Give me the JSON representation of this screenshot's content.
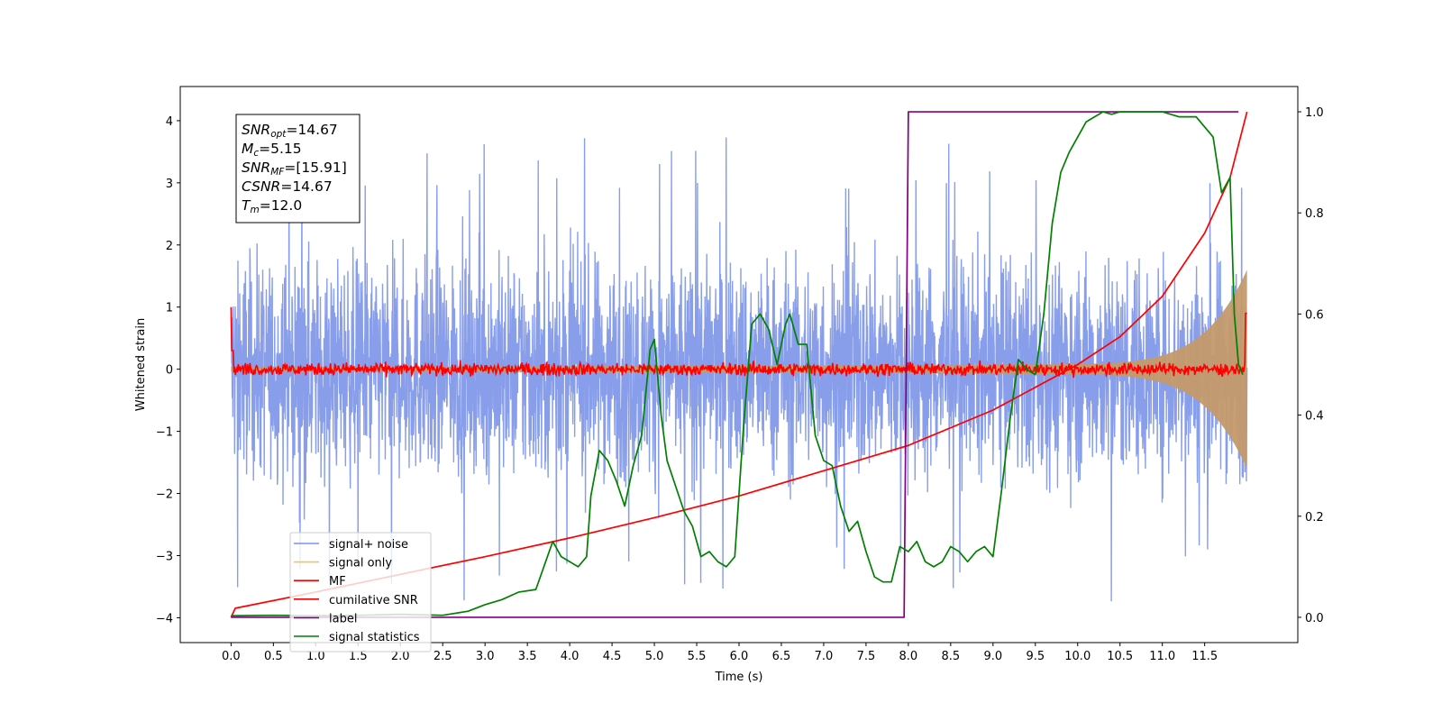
{
  "chart_data": {
    "type": "line",
    "xlabel": "Time (s)",
    "ylabel": "Whitened strain",
    "xlim": [
      -0.6,
      12.6
    ],
    "ylim": [
      -4.4,
      4.55
    ],
    "y2lim": [
      -0.05,
      1.05
    ],
    "x_ticks": [
      "0.0",
      "0.5",
      "1.0",
      "1.5",
      "2.0",
      "2.5",
      "3.0",
      "3.5",
      "4.0",
      "4.5",
      "5.0",
      "5.5",
      "6.0",
      "6.5",
      "7.0",
      "7.5",
      "8.0",
      "8.5",
      "9.0",
      "9.5",
      "10.0",
      "10.5",
      "11.0",
      "11.5"
    ],
    "y_ticks": [
      "4",
      "3",
      "2",
      "1",
      "0",
      "−1",
      "−2",
      "−3",
      "−4"
    ],
    "y2_ticks": [
      "1.0",
      "0.8",
      "0.6",
      "0.4",
      "0.2",
      "0.0"
    ],
    "annotation": {
      "snr_opt": {
        "base": "SNR",
        "sub": "opt",
        "value": "=14.67"
      },
      "mc": {
        "base": "M",
        "sub": "c",
        "value": "=5.15"
      },
      "snr_mf": {
        "base": "SNR",
        "sub": "MF",
        "value": "=[15.91]"
      },
      "csnr": {
        "base": "CSNR",
        "value": "=14.67"
      },
      "tm": {
        "base": "T",
        "sub": "m",
        "value": "=12.0"
      }
    },
    "legend_position": "lower-left",
    "series": [
      {
        "name": "signal+ noise",
        "axis": "left",
        "color": "#7b93e8",
        "desc": "noise band ~ ±2.3 with spikes to ±3.8"
      },
      {
        "name": "signal only",
        "axis": "left",
        "color": "#f5c060",
        "desc": "chirp envelope growing to ±1.5 at 12 s"
      },
      {
        "name": "MF",
        "axis": "left",
        "color": "#ff0000",
        "desc": "matched filter near 0, spike at 0 s"
      },
      {
        "name": "cumilative SNR",
        "axis": "right",
        "color": "#ff0000",
        "x": [
          0.0,
          0.05,
          1,
          2,
          3,
          4,
          5,
          6,
          7,
          8,
          9,
          10,
          10.5,
          11,
          11.5,
          11.8,
          12.0
        ],
        "y": [
          0.0,
          0.018,
          0.05,
          0.085,
          0.12,
          0.157,
          0.197,
          0.24,
          0.29,
          0.34,
          0.41,
          0.5,
          0.555,
          0.635,
          0.76,
          0.87,
          1.0
        ]
      },
      {
        "name": "label",
        "axis": "right",
        "color": "#800080",
        "x": [
          0.0,
          7.95,
          8.0,
          11.9
        ],
        "y": [
          0.0,
          0.0,
          1.0,
          1.0
        ]
      },
      {
        "name": "signal statistics",
        "axis": "right",
        "color": "#008000",
        "x": [
          0.0,
          0.5,
          1.0,
          1.5,
          2.0,
          2.5,
          2.8,
          3.0,
          3.2,
          3.4,
          3.6,
          3.8,
          3.9,
          4.0,
          4.1,
          4.2,
          4.25,
          4.35,
          4.45,
          4.55,
          4.65,
          4.75,
          4.85,
          4.95,
          5.0,
          5.08,
          5.15,
          5.25,
          5.35,
          5.45,
          5.55,
          5.65,
          5.75,
          5.85,
          5.95,
          6.05,
          6.15,
          6.25,
          6.35,
          6.45,
          6.55,
          6.6,
          6.7,
          6.8,
          6.9,
          7.0,
          7.1,
          7.2,
          7.3,
          7.4,
          7.5,
          7.6,
          7.7,
          7.8,
          7.9,
          8.0,
          8.1,
          8.2,
          8.3,
          8.4,
          8.5,
          8.6,
          8.7,
          8.8,
          8.9,
          9.0,
          9.1,
          9.2,
          9.3,
          9.4,
          9.5,
          9.6,
          9.7,
          9.8,
          9.9,
          10.0,
          10.1,
          10.2,
          10.3,
          10.4,
          10.5,
          10.7,
          10.9,
          11.0,
          11.2,
          11.4,
          11.6,
          11.7,
          11.8,
          11.85,
          11.9,
          11.95
        ],
        "y": [
          0.003,
          0.004,
          0.003,
          0.004,
          0.006,
          0.004,
          0.012,
          0.025,
          0.035,
          0.05,
          0.055,
          0.15,
          0.12,
          0.11,
          0.1,
          0.12,
          0.24,
          0.33,
          0.31,
          0.27,
          0.22,
          0.3,
          0.36,
          0.53,
          0.55,
          0.4,
          0.31,
          0.26,
          0.21,
          0.18,
          0.12,
          0.13,
          0.11,
          0.1,
          0.12,
          0.37,
          0.58,
          0.6,
          0.57,
          0.5,
          0.58,
          0.6,
          0.54,
          0.54,
          0.36,
          0.31,
          0.3,
          0.22,
          0.17,
          0.19,
          0.13,
          0.08,
          0.07,
          0.07,
          0.14,
          0.13,
          0.15,
          0.11,
          0.1,
          0.11,
          0.14,
          0.13,
          0.11,
          0.13,
          0.14,
          0.12,
          0.25,
          0.39,
          0.51,
          0.49,
          0.48,
          0.6,
          0.78,
          0.88,
          0.92,
          0.95,
          0.98,
          0.99,
          1.0,
          0.995,
          1.0,
          1.0,
          1.0,
          1.0,
          0.99,
          0.99,
          0.95,
          0.84,
          0.87,
          0.6,
          0.5,
          0.48
        ]
      }
    ]
  }
}
